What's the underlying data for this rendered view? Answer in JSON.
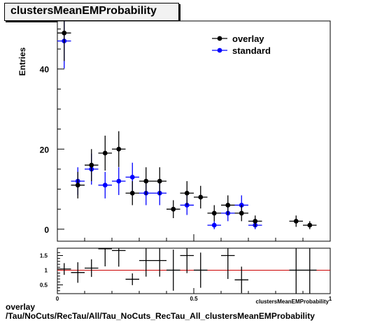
{
  "title": "clustersMeanEMProbability",
  "footer": {
    "line1": "overlay",
    "line2": "/Tau/NoCuts/RecTau/All/Tau_NoCuts_RecTau_All_clustersMeanEMProbability"
  },
  "chart_data": [
    {
      "type": "scatter",
      "ylabel": "Entries",
      "xlim": [
        0,
        1
      ],
      "ylim": [
        -3,
        52
      ],
      "y_ticks": [
        0,
        20,
        40
      ],
      "legend": {
        "placement": "top-right"
      },
      "series": [
        {
          "name": "overlay",
          "color": "#000000",
          "x": [
            0.025,
            0.075,
            0.125,
            0.175,
            0.225,
            0.275,
            0.325,
            0.375,
            0.425,
            0.475,
            0.525,
            0.575,
            0.625,
            0.675,
            0.725,
            0.875,
            0.925
          ],
          "y": [
            49,
            11,
            16,
            19,
            20,
            9,
            12,
            12,
            5,
            9,
            8,
            4,
            6,
            4,
            2,
            2,
            1
          ]
        },
        {
          "name": "standard",
          "color": "#0000ff",
          "x": [
            0.025,
            0.075,
            0.125,
            0.175,
            0.225,
            0.275,
            0.325,
            0.375,
            0.475,
            0.575,
            0.625,
            0.675,
            0.725
          ],
          "y": [
            47,
            12,
            15,
            11,
            12,
            13,
            9,
            9,
            6,
            1,
            4,
            6,
            1
          ]
        }
      ]
    },
    {
      "type": "scatter",
      "xlabel": "clustersMeanEMProbability",
      "xlim": [
        0,
        1
      ],
      "ylim": [
        0.2,
        1.75
      ],
      "x_ticks": [
        0,
        0.5,
        1
      ],
      "y_ticks": [
        0.5,
        1,
        1.5
      ],
      "reference_line": 1,
      "series": [
        {
          "name": "ratio",
          "x": [
            0.025,
            0.075,
            0.125,
            0.175,
            0.225,
            0.275,
            0.325,
            0.375,
            0.425,
            0.475,
            0.525,
            0.625,
            0.675,
            0.875,
            0.925
          ],
          "y": [
            1.04,
            0.92,
            1.07,
            1.73,
            1.67,
            0.69,
            1.33,
            1.33,
            1.0,
            1.5,
            1.0,
            1.5,
            0.67,
            1.0,
            1.0
          ],
          "err": [
            0.2,
            0.35,
            0.3,
            0.6,
            0.55,
            0.2,
            0.55,
            0.55,
            0.7,
            0.6,
            0.6,
            0.8,
            0.45,
            1.0,
            1.0
          ]
        }
      ]
    }
  ]
}
